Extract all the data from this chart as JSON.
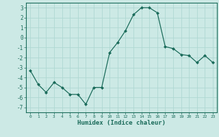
{
  "x": [
    0,
    1,
    2,
    3,
    4,
    5,
    6,
    7,
    8,
    9,
    10,
    11,
    12,
    13,
    14,
    15,
    16,
    17,
    18,
    19,
    20,
    21,
    22,
    23
  ],
  "y": [
    -3.3,
    -4.7,
    -5.5,
    -4.5,
    -5.0,
    -5.7,
    -5.7,
    -6.7,
    -5.0,
    -5.0,
    -1.5,
    -0.5,
    0.7,
    2.3,
    3.0,
    3.0,
    2.5,
    -0.9,
    -1.1,
    -1.7,
    -1.8,
    -2.5,
    -1.8,
    -2.5
  ],
  "xlabel": "Humidex (Indice chaleur)",
  "ylim": [
    -7.5,
    3.5
  ],
  "xlim": [
    -0.5,
    23.5
  ],
  "yticks": [
    -7,
    -6,
    -5,
    -4,
    -3,
    -2,
    -1,
    0,
    1,
    2,
    3
  ],
  "xticks": [
    0,
    1,
    2,
    3,
    4,
    5,
    6,
    7,
    8,
    9,
    10,
    11,
    12,
    13,
    14,
    15,
    16,
    17,
    18,
    19,
    20,
    21,
    22,
    23
  ],
  "line_color": "#1a6b5a",
  "marker": "D",
  "marker_size": 2.0,
  "background_color": "#cce9e5",
  "grid_color": "#afd8d2",
  "tick_color": "#1a6b5a",
  "label_color": "#1a6b5a"
}
